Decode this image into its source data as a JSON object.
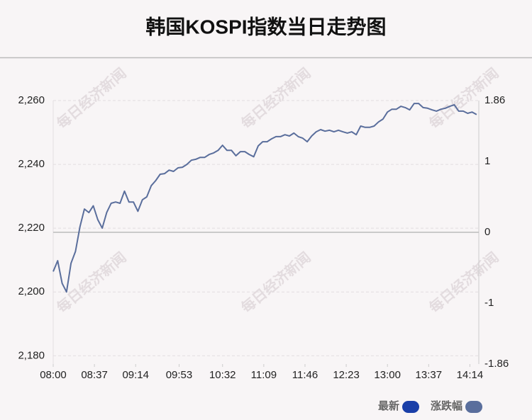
{
  "chart_data": {
    "type": "line",
    "title": "韩国KOSPI指数当日走势图",
    "watermark": "每日经济新闻",
    "x": [
      "08:00",
      "08:04",
      "08:08",
      "08:12",
      "08:16",
      "08:20",
      "08:24",
      "08:28",
      "08:32",
      "08:36",
      "08:40",
      "08:44",
      "08:48",
      "08:52",
      "08:56",
      "09:00",
      "09:04",
      "09:08",
      "09:12",
      "09:16",
      "09:20",
      "09:24",
      "09:28",
      "09:32",
      "09:36",
      "09:40",
      "09:44",
      "09:48",
      "09:52",
      "09:56",
      "10:00",
      "10:04",
      "10:08",
      "10:12",
      "10:16",
      "10:20",
      "10:24",
      "10:28",
      "10:32",
      "10:36",
      "10:40",
      "10:44",
      "10:48",
      "10:52",
      "10:56",
      "11:00",
      "11:04",
      "11:08",
      "11:12",
      "11:16",
      "11:20",
      "11:24",
      "11:28",
      "11:32",
      "11:36",
      "11:40",
      "11:44",
      "11:48",
      "11:52",
      "11:56",
      "12:00",
      "12:04",
      "12:08",
      "12:12",
      "12:16",
      "12:20",
      "12:24",
      "12:28",
      "12:32",
      "12:36",
      "12:40",
      "12:44",
      "12:48",
      "12:52",
      "12:56",
      "13:00",
      "13:04",
      "13:08",
      "13:12",
      "13:16",
      "13:20",
      "13:24",
      "13:28",
      "13:32",
      "13:36",
      "13:40",
      "13:44",
      "13:48",
      "13:52",
      "13:56",
      "14:00",
      "14:04",
      "14:08",
      "14:12",
      "14:16",
      "14:20"
    ],
    "series": [
      {
        "name": "最新",
        "color": "#5a6e9c",
        "values": [
          2206.4,
          2209.8,
          2202.7,
          2200,
          2209,
          2212.7,
          2220.4,
          2226,
          2224.9,
          2227,
          2222.7,
          2220,
          2224.9,
          2227.8,
          2228.2,
          2227.8,
          2231.6,
          2228.2,
          2228.2,
          2225.3,
          2228.9,
          2229.8,
          2233.3,
          2234.9,
          2236.9,
          2237.1,
          2238.2,
          2237.8,
          2238.9,
          2239.1,
          2240,
          2241.3,
          2241.6,
          2242.2,
          2242.2,
          2243.1,
          2243.6,
          2244.4,
          2246,
          2244.4,
          2244.4,
          2242.7,
          2244,
          2244,
          2243.1,
          2242.4,
          2245.8,
          2247.1,
          2247.1,
          2248,
          2248.7,
          2248.7,
          2249.3,
          2248.9,
          2249.8,
          2248.7,
          2248.2,
          2247.1,
          2248.9,
          2250.2,
          2250.9,
          2250.4,
          2250.7,
          2250.2,
          2250.7,
          2250.2,
          2249.8,
          2250.2,
          2249.3,
          2252,
          2251.6,
          2251.6,
          2252,
          2253.3,
          2254.2,
          2256.4,
          2257.3,
          2257.3,
          2258.2,
          2257.8,
          2257.1,
          2259.1,
          2259.1,
          2257.8,
          2257.6,
          2257.1,
          2256.7,
          2257.3,
          2257.6,
          2258.2,
          2258.7,
          2256.7,
          2256.7,
          2256,
          2256.4,
          2255.6
        ]
      }
    ],
    "legend": [
      {
        "name": "最新",
        "color": "#1a3fa8"
      },
      {
        "name": "涨跌幅",
        "color": "#5a6e9c"
      }
    ],
    "xlim": [
      "08:00",
      "14:22"
    ],
    "xticks": [
      "08:00",
      "08:37",
      "09:14",
      "09:53",
      "10:32",
      "11:09",
      "11:46",
      "12:23",
      "13:00",
      "13:37",
      "14:14"
    ],
    "ylim": [
      2177.4,
      2260
    ],
    "yticks": [
      {
        "value": 2260,
        "label": "2,260"
      },
      {
        "value": 2240,
        "label": "2,240"
      },
      {
        "value": 2220,
        "label": "2,220"
      },
      {
        "value": 2200,
        "label": "2,200"
      },
      {
        "value": 2180,
        "label": "2,180"
      }
    ],
    "y2lim": [
      -1.86,
      1.86
    ],
    "y2ticks": [
      1.86,
      1,
      0,
      -1,
      -1.86
    ],
    "grid": true
  }
}
